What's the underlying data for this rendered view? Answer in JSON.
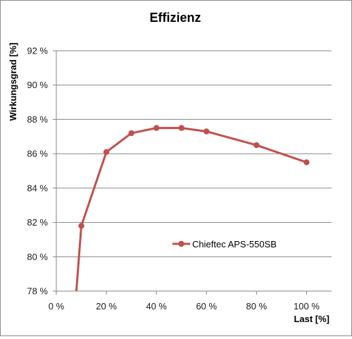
{
  "chart_data": {
    "type": "line",
    "title": "Effizienz",
    "xlabel": "Last [%]",
    "ylabel": "Wirkungsgrad [%]",
    "xlim": [
      0,
      110
    ],
    "ylim": [
      78,
      92
    ],
    "x_ticks": [
      0,
      20,
      40,
      60,
      80,
      100
    ],
    "x_tick_labels": [
      "0 %",
      "20 %",
      "40 %",
      "60 %",
      "80 %",
      "100 %"
    ],
    "y_ticks": [
      78,
      80,
      82,
      84,
      86,
      88,
      90,
      92
    ],
    "y_tick_labels": [
      "78 %",
      "80 %",
      "82 %",
      "84 %",
      "86 %",
      "88 %",
      "90 %",
      "92 %"
    ],
    "grid": "horizontal",
    "legend_position": "lower-right",
    "series": [
      {
        "name": "Chieftec APS-550SB",
        "color": "#c0504d",
        "x": [
          10,
          20,
          30,
          40,
          50,
          60,
          80,
          100
        ],
        "y": [
          81.8,
          86.1,
          87.2,
          87.5,
          87.5,
          87.3,
          86.5,
          85.5
        ],
        "line_start": {
          "x": 8,
          "y": 78
        }
      }
    ]
  }
}
